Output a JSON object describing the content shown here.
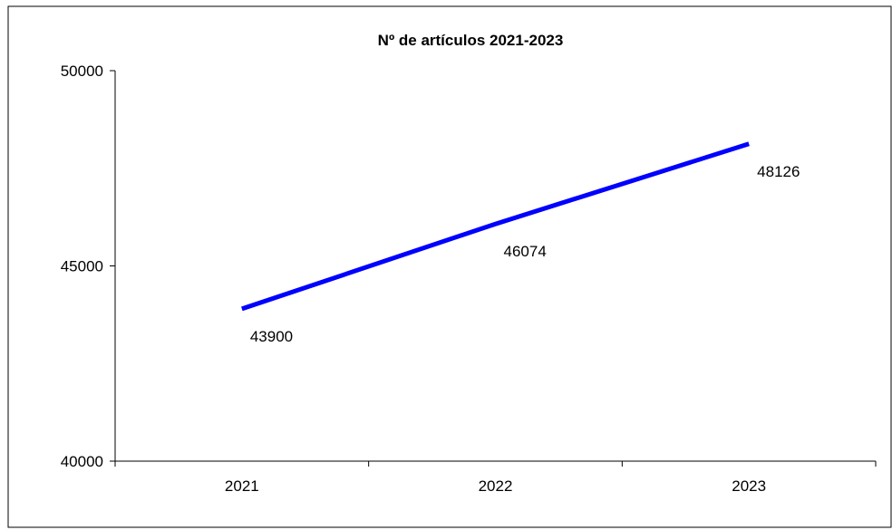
{
  "chart_data": {
    "type": "line",
    "title": "Nº de artículos  2021-2023",
    "xlabel": "",
    "ylabel": "",
    "categories": [
      "2021",
      "2022",
      "2023"
    ],
    "series": [
      {
        "values": [
          43900,
          46074,
          48126
        ],
        "data_labels": [
          "43900",
          "46074",
          "48126"
        ],
        "color": "#0000FF"
      }
    ],
    "ylim": [
      40000,
      50000
    ],
    "yticks": [
      40000,
      45000,
      50000
    ],
    "ytick_labels": [
      "40000",
      "45000",
      "50000"
    ],
    "grid": false,
    "legend": "none"
  }
}
